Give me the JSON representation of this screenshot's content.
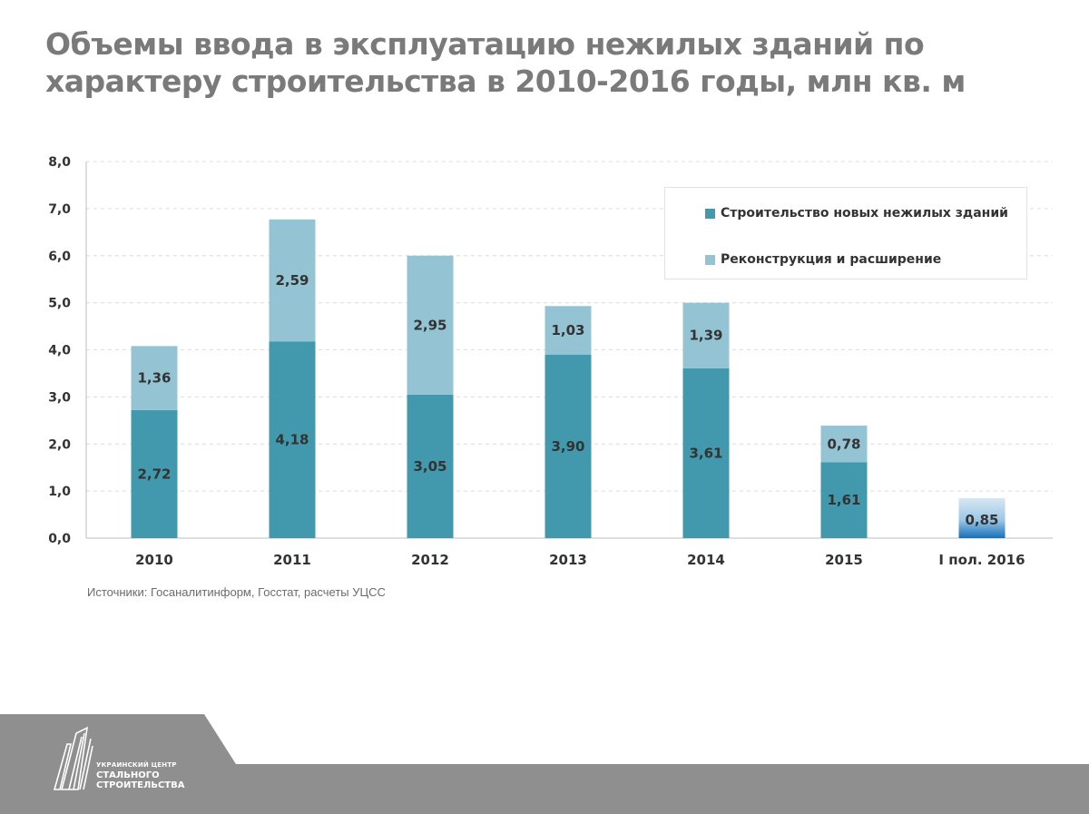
{
  "title": "Объемы ввода в эксплуатацию нежилых зданий по характеру строительства в 2010-2016 годы, млн кв. м",
  "source": "Источники: Госаналитинформ, Госстат, расчеты УЦСС",
  "logo": {
    "line1": "УКРАИНСКИЙ ЦЕНТР",
    "line2": "СТАЛЬНОГО",
    "line3": "СТРОИТЕЛЬСТВА"
  },
  "colors": {
    "new": "#4299ae",
    "recon": "#94c4d4",
    "highlight_new": "#1570b8",
    "highlight_recon": "#d7e7f3",
    "grid": "#dcdcdc",
    "axis_text": "#333333"
  },
  "chart_data": {
    "type": "bar",
    "stacked": true,
    "categories": [
      "2010",
      "2011",
      "2012",
      "2013",
      "2014",
      "2015",
      "I пол. 2016"
    ],
    "series": [
      {
        "name": "Строительство новых нежилых зданий",
        "values": [
          2.72,
          4.18,
          3.05,
          3.9,
          3.61,
          1.61,
          0.3
        ],
        "labels": [
          "2,72",
          "4,18",
          "3,05",
          "3,90",
          "3,61",
          "1,61",
          ""
        ]
      },
      {
        "name": "Реконструкция и расширение",
        "values": [
          1.36,
          2.59,
          2.95,
          1.03,
          1.39,
          0.78,
          0.55
        ],
        "labels": [
          "1,36",
          "2,59",
          "2,95",
          "1,03",
          "1,39",
          "0,78",
          ""
        ]
      }
    ],
    "totals_labels": [
      "",
      "",
      "",
      "",
      "",
      "",
      "0,85"
    ],
    "y_ticks": [
      "0,0",
      "1,0",
      "2,0",
      "3,0",
      "4,0",
      "5,0",
      "6,0",
      "7,0",
      "8,0"
    ],
    "ylim": [
      0,
      8
    ],
    "grid": true,
    "legend_position": "top-right"
  }
}
